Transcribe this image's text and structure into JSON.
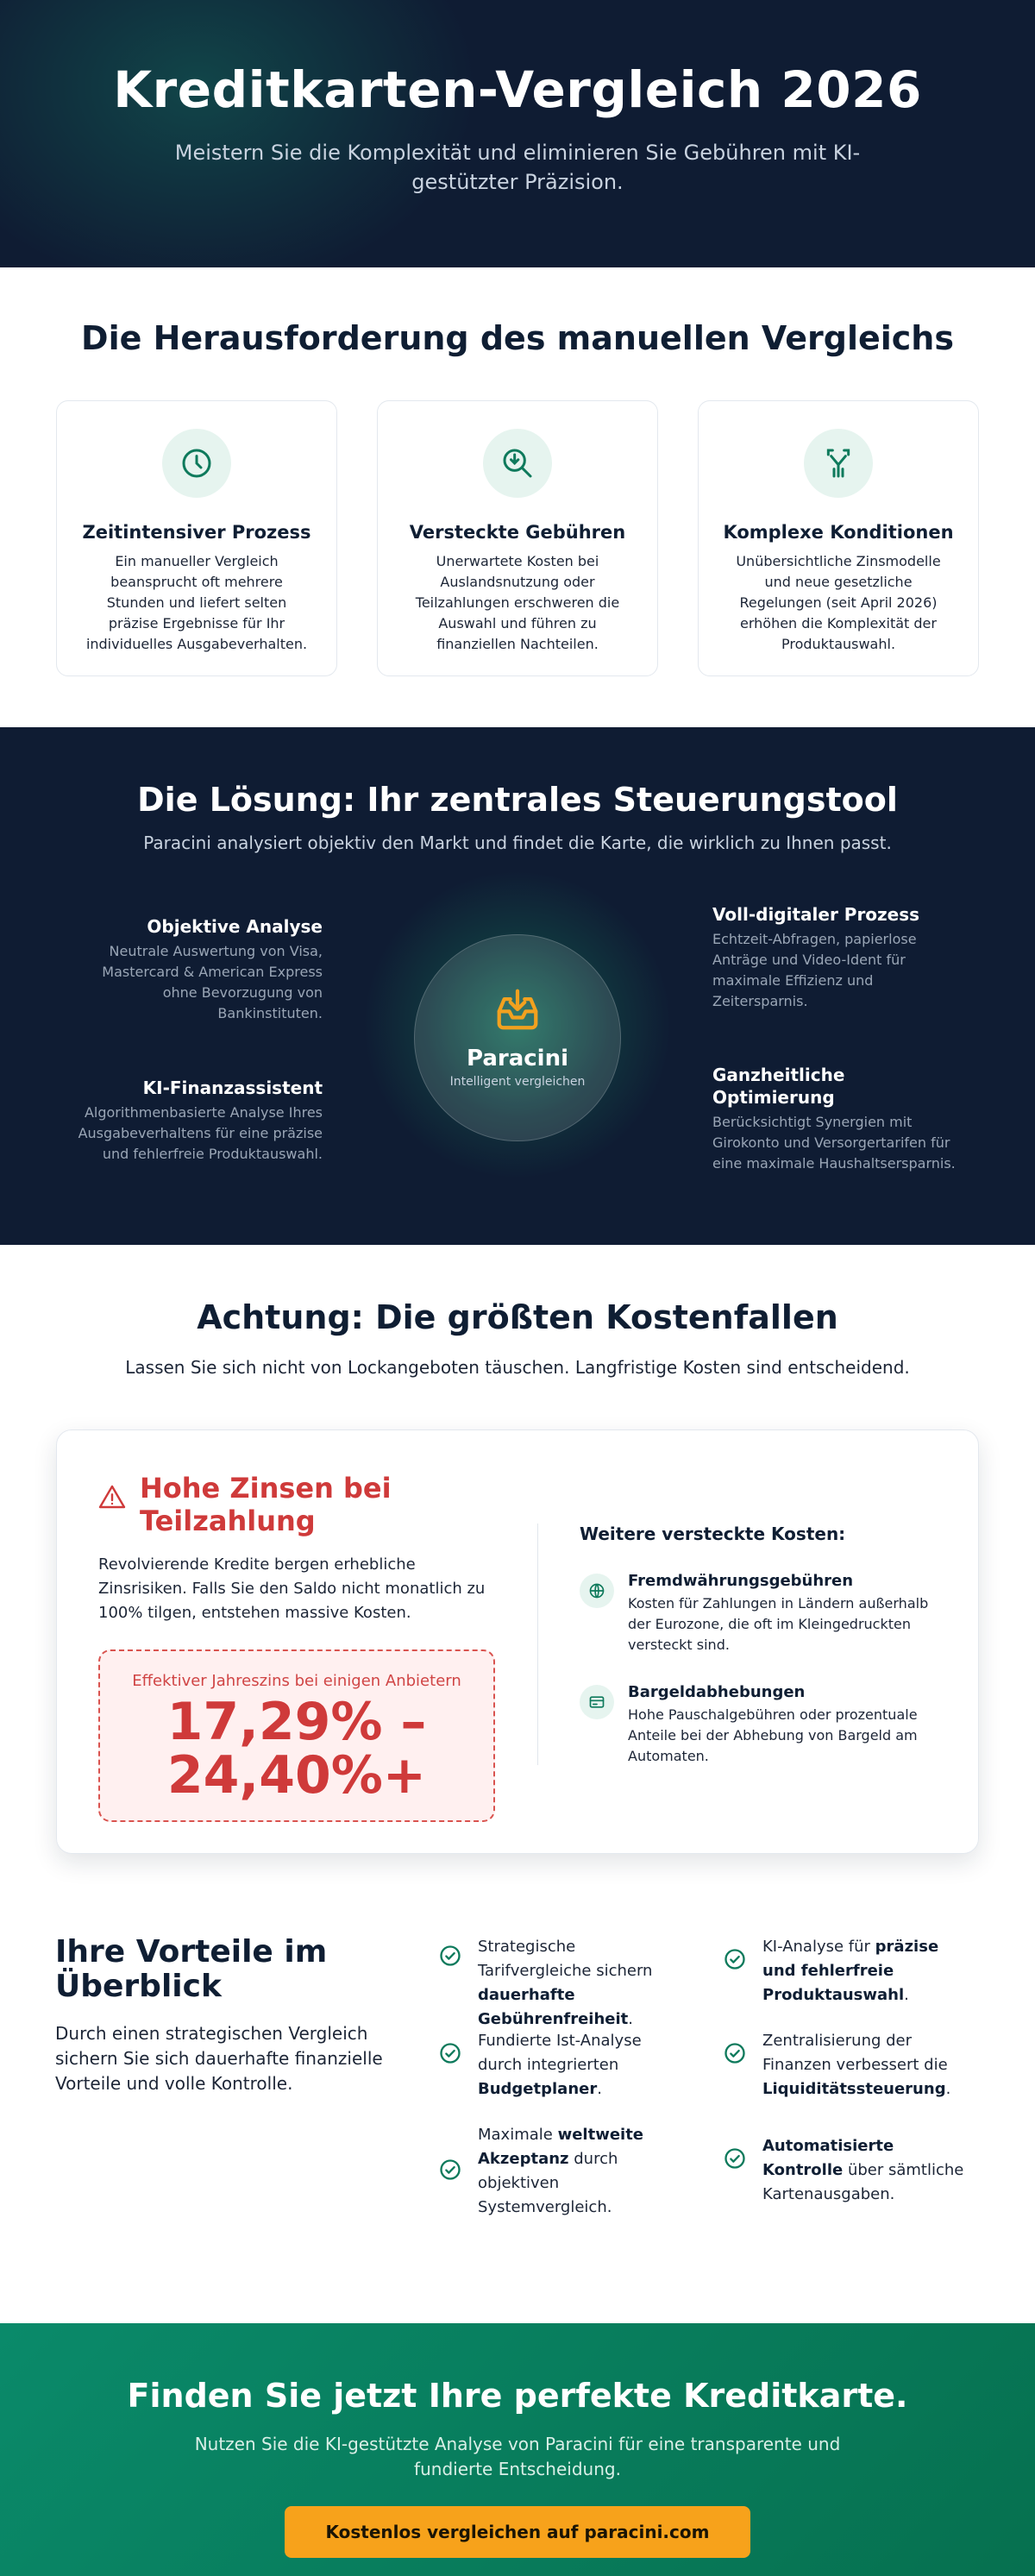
{
  "hero": {
    "title": "Kreditkarten-Vergleich 2026",
    "subtitle": "Meistern Sie die Komplexität und eliminieren Sie Gebühren mit KI-gestützter Präzision."
  },
  "challenge": {
    "title": "Die Herausforderung des manuellen Vergleichs",
    "cards": [
      {
        "icon": "clock-icon",
        "title": "Zeitintensiver Prozess",
        "text": "Ein manueller Vergleich beansprucht oft mehrere Stunden und liefert selten präzise Ergebnisse für Ihr individuelles Ausgabeverhalten."
      },
      {
        "icon": "search-download-icon",
        "title": "Versteckte Gebühren",
        "text": "Unerwartete Kosten bei Auslandsnutzung oder Teilzahlungen erschweren die Auswahl und führen zu finanziellen Nachteilen."
      },
      {
        "icon": "split-arrows-icon",
        "title": "Komplexe Konditionen",
        "text": "Unübersichtliche Zinsmodelle und neue gesetzliche Regelungen (seit April 2026) erhöhen die Komplexität der Produktauswahl."
      }
    ]
  },
  "solution": {
    "title": "Die Lösung: Ihr zentrales Steuerungstool",
    "subtitle": "Paracini analysiert objektiv den Markt und findet die Karte, die wirklich zu Ihnen passt.",
    "center": {
      "name": "Paracini",
      "tagline": "Intelligent vergleichen"
    },
    "features": [
      {
        "title": "Objektive Analyse",
        "text": "Neutrale Auswertung von Visa, Mastercard & American Express ohne Bevorzugung von Bankinstituten."
      },
      {
        "title": "KI-Finanzassistent",
        "text": "Algorithmenbasierte Analyse Ihres Ausgabeverhaltens für eine präzise und fehlerfreie Produktauswahl."
      },
      {
        "title": "Voll-digitaler Prozess",
        "text": "Echtzeit-Abfragen, papierlose Anträge und Video-Ident für maximale Effizienz und Zeitersparnis."
      },
      {
        "title": "Ganzheitliche Optimierung",
        "text": "Berücksichtigt Synergien mit Girokonto und Versorgertarifen für eine maximale Haushaltsersparnis."
      }
    ]
  },
  "pitfalls": {
    "title": "Achtung: Die größten Kostenfallen",
    "lead": "Lassen Sie sich nicht von Lockangeboten täuschen. Langfristige Kosten sind entscheidend.",
    "interest": {
      "title": "Hohe Zinsen bei Teilzahlung",
      "text": "Revolvierende Kredite bergen erhebliche Zinsrisiken. Falls Sie den Saldo nicht monatlich zu 100% tilgen, entstehen massive Kosten.",
      "rate_label": "Effektiver Jahreszins bei einigen Anbietern",
      "rate_line1": "17,29% –",
      "rate_line2": "24,40%+"
    },
    "hidden": {
      "title": "Weitere versteckte Kosten:",
      "items": [
        {
          "icon": "globe-icon",
          "title": "Fremdwährungsgebühren",
          "text": "Kosten für Zahlungen in Ländern außerhalb der Eurozone, die oft im Kleingedruckten versteckt sind."
        },
        {
          "icon": "card-icon",
          "title": "Bargeldabhebungen",
          "text": "Hohe Pauschalgebühren oder prozentuale Anteile bei der Abhebung von Bargeld am Automaten."
        }
      ]
    }
  },
  "benefits": {
    "title": "Ihre Vorteile im Überblick",
    "text": "Durch einen strategischen Vergleich sichern Sie sich dauerhafte finanzielle Vorteile und volle Kontrolle.",
    "items": [
      {
        "pre": "Strategische Tarifvergleiche sichern ",
        "bold": "dauerhafte Gebührenfreiheit",
        "post": "."
      },
      {
        "pre": "Fundierte Ist-Analyse durch integrierten ",
        "bold": "Budgetplaner",
        "post": "."
      },
      {
        "pre": "Maximale ",
        "bold": "weltweite Akzeptanz",
        "post": " durch objektiven Systemvergleich."
      },
      {
        "pre": "KI-Analyse für ",
        "bold": "präzise und fehlerfreie Produktauswahl",
        "post": "."
      },
      {
        "pre": "Zentralisierung der Finanzen verbessert die ",
        "bold": "Liquiditätssteuerung",
        "post": "."
      },
      {
        "pre": "",
        "bold": "Automatisierte Kontrolle",
        "post": " über sämtliche Kartenausgaben."
      }
    ]
  },
  "cta": {
    "title": "Finden Sie jetzt Ihre perfekte Kreditkarte.",
    "text": "Nutzen Sie die KI-gestützte Analyse von Paracini für eine transparente und fundierte Entscheidung.",
    "button": "Kostenlos vergleichen auf paracini.com"
  },
  "colors": {
    "navy": "#0f1c33",
    "green": "#0a8a6a",
    "accent_orange": "#f7a21b",
    "warning_red": "#cf3a3a"
  }
}
